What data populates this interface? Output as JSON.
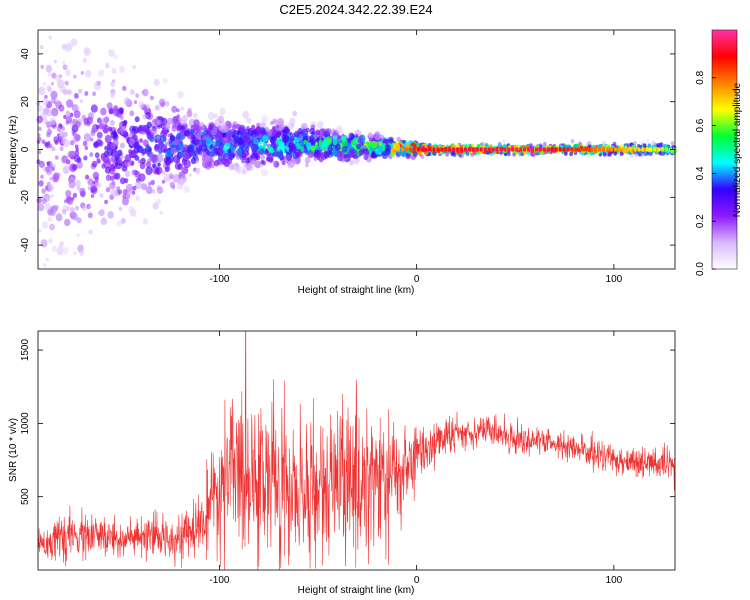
{
  "title": "C2E5.2024.342.22.39.E24",
  "chart_data": [
    {
      "type": "heatmap",
      "xlabel": "Height of straight line (km)",
      "ylabel": "Frequency (Hz)",
      "xlim": [
        -192,
        131
      ],
      "ylim": [
        -50,
        50
      ],
      "xticks": [
        -100,
        0,
        100
      ],
      "xtick_labels": [
        "-100",
        "0",
        "100"
      ],
      "yticks": [
        -40,
        -20,
        0,
        20,
        40
      ],
      "ytick_labels": [
        "-40",
        "-20",
        "0",
        "20",
        "40"
      ],
      "colorbar": {
        "label": "Normalized spectral amplitude",
        "range": [
          0,
          1
        ],
        "ticks": [
          0.0,
          0.2,
          0.4,
          0.6,
          0.8
        ],
        "tick_labels": [
          "0.0",
          "0.2",
          "0.4",
          "0.6",
          "0.8"
        ],
        "colors": [
          "#ffffff",
          "#d9b8ff",
          "#8c1aff",
          "#3300ff",
          "#00ffff",
          "#00ff33",
          "#ffff00",
          "#ff8000",
          "#ff0000",
          "#ff33aa"
        ]
      },
      "ridge": {
        "description_points": [
          {
            "x": -192,
            "center": 0,
            "spread": 48,
            "intensity": 0.18
          },
          {
            "x": -110,
            "center": 2,
            "spread": 10,
            "intensity": 0.35
          },
          {
            "x": -60,
            "center": 2,
            "spread": 7,
            "intensity": 0.45
          },
          {
            "x": -20,
            "center": 1,
            "spread": 4,
            "intensity": 0.55
          },
          {
            "x": 0,
            "center": 0,
            "spread": 2,
            "intensity": 0.9
          },
          {
            "x": 60,
            "center": 0,
            "spread": 1.5,
            "intensity": 0.95
          },
          {
            "x": 131,
            "center": 0,
            "spread": 2,
            "intensity": 0.6
          }
        ]
      }
    },
    {
      "type": "line",
      "xlabel": "Height of straight line (km)",
      "ylabel": "SNR (10 * v/v)",
      "xlim": [
        -192,
        131
      ],
      "ylim": [
        0,
        1630
      ],
      "xticks": [
        -100,
        0,
        100
      ],
      "xtick_labels": [
        "-100",
        "0",
        "100"
      ],
      "yticks": [
        500,
        1000,
        1500
      ],
      "ytick_labels": [
        "500",
        "1000",
        "1500"
      ],
      "color": "#ee3333",
      "envelope": {
        "x": [
          -192,
          -170,
          -140,
          -115,
          -105,
          -95,
          -85,
          -70,
          -60,
          -45,
          -35,
          -25,
          -15,
          -8,
          0,
          10,
          20,
          35,
          50,
          70,
          100,
          131
        ],
        "mean": [
          190,
          230,
          210,
          240,
          380,
          650,
          700,
          600,
          500,
          560,
          600,
          650,
          600,
          650,
          780,
          880,
          930,
          960,
          900,
          860,
          760,
          700
        ],
        "noise": [
          100,
          130,
          110,
          130,
          250,
          450,
          520,
          450,
          400,
          420,
          450,
          480,
          430,
          300,
          180,
          120,
          100,
          80,
          90,
          80,
          90,
          100
        ]
      }
    }
  ]
}
